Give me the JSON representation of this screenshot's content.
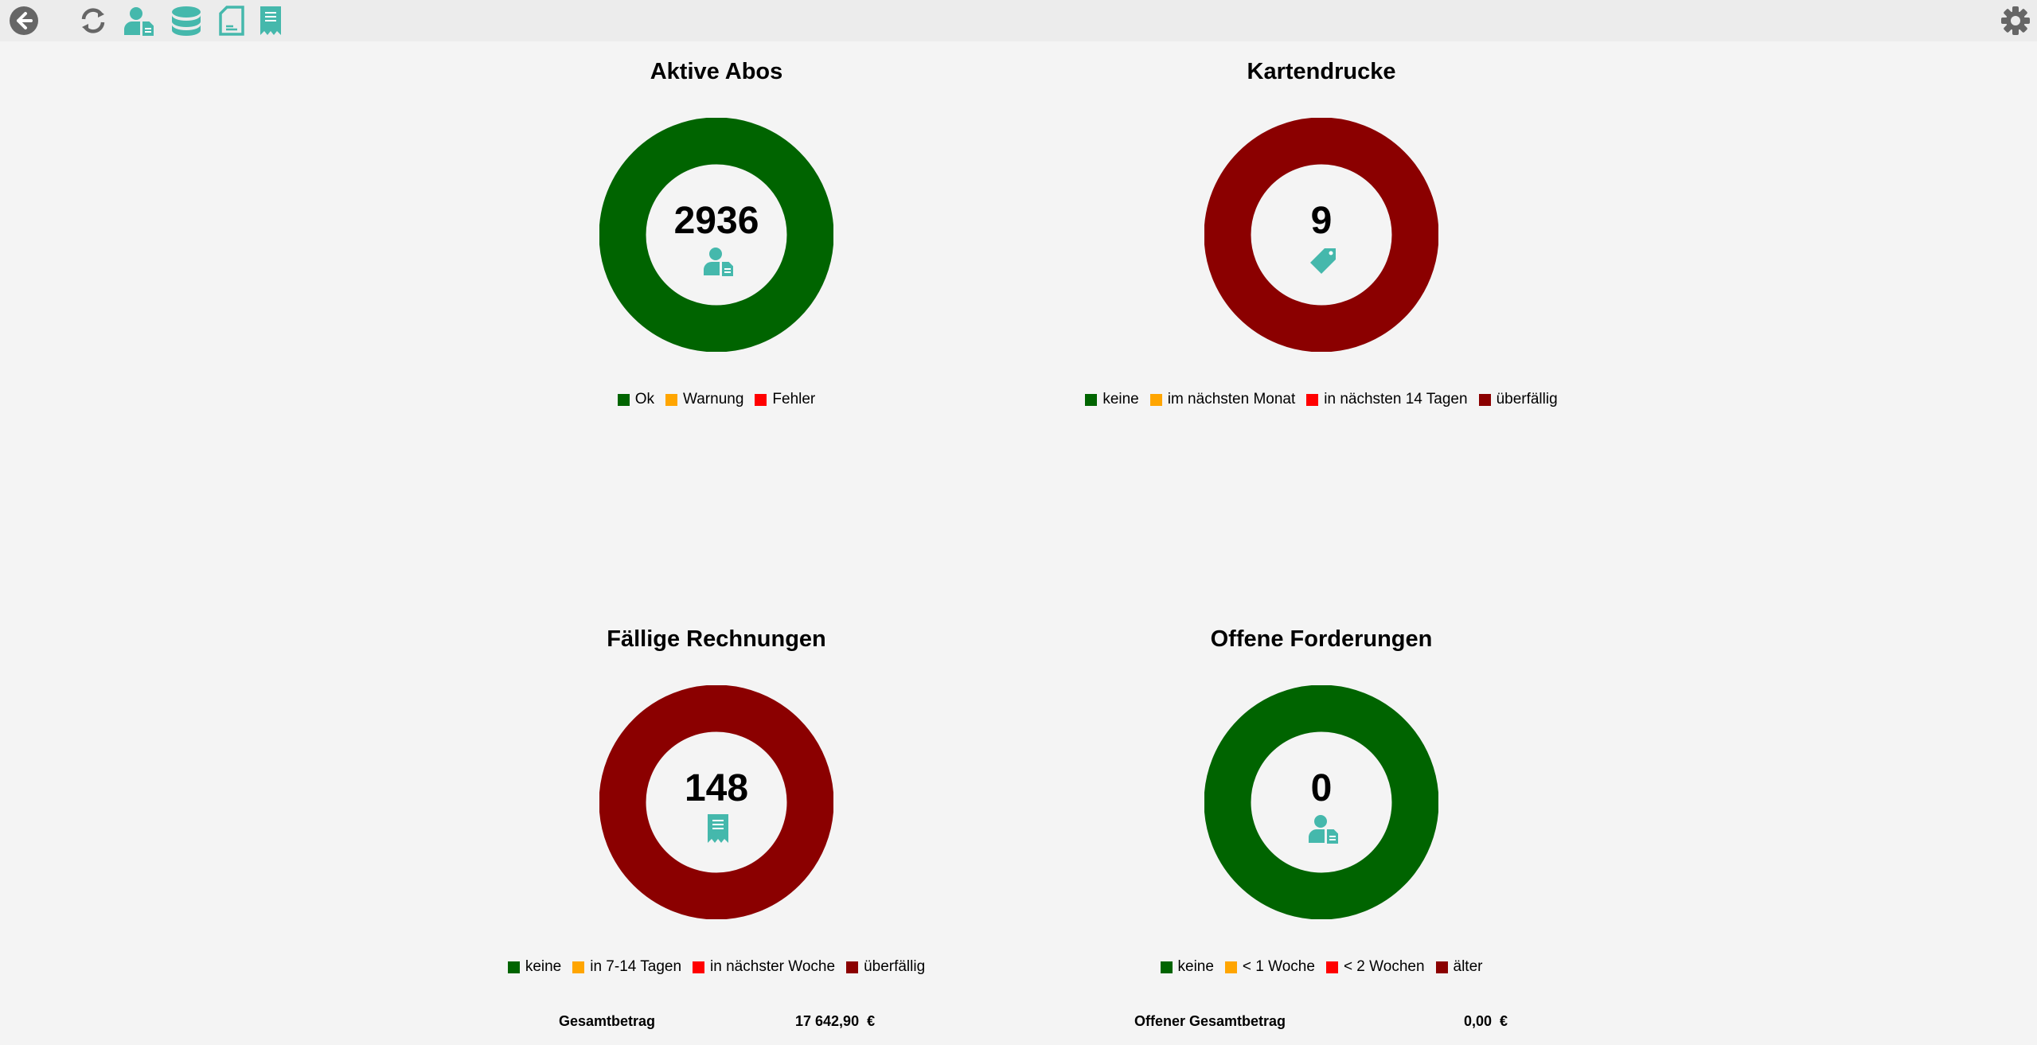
{
  "colors": {
    "ok": "#006400",
    "warn": "#ffa500",
    "err": "#ff0000",
    "late": "#8b0000",
    "accent": "#45b8ac",
    "icon_gray": "#666666"
  },
  "toolbar": {
    "icons": [
      "back-icon",
      "refresh-icon",
      "subscriber-icon",
      "database-icon",
      "document-icon",
      "receipt-icon"
    ],
    "settings": "gear-icon"
  },
  "panels": [
    {
      "title": "Aktive Abos",
      "count": "2936",
      "icon": "subscriber-icon",
      "legend": [
        {
          "label": "Ok",
          "color": "#006400"
        },
        {
          "label": "Warnung",
          "color": "#ffa500"
        },
        {
          "label": "Fehler",
          "color": "#ff0000"
        }
      ]
    },
    {
      "title": "Kartendrucke",
      "count": "9",
      "icon": "tag-icon",
      "legend": [
        {
          "label": "keine",
          "color": "#006400"
        },
        {
          "label": "im nächsten Monat",
          "color": "#ffa500"
        },
        {
          "label": "in nächsten 14 Tagen",
          "color": "#ff0000"
        },
        {
          "label": "überfällig",
          "color": "#8b0000"
        }
      ]
    },
    {
      "title": "Fällige Rechnungen",
      "count": "148",
      "icon": "receipt-icon",
      "legend": [
        {
          "label": "keine",
          "color": "#006400"
        },
        {
          "label": "in 7-14 Tagen",
          "color": "#ffa500"
        },
        {
          "label": "in nächster Woche",
          "color": "#ff0000"
        },
        {
          "label": "überfällig",
          "color": "#8b0000"
        }
      ],
      "total_label": "Gesamtbetrag",
      "total_value": "17 642,90  €"
    },
    {
      "title": "Offene Forderungen",
      "count": "0",
      "icon": "subscriber-icon",
      "legend": [
        {
          "label": "keine",
          "color": "#006400"
        },
        {
          "label": "< 1 Woche",
          "color": "#ffa500"
        },
        {
          "label": "< 2 Wochen",
          "color": "#ff0000"
        },
        {
          "label": "älter",
          "color": "#8b0000"
        }
      ],
      "total_label": "Offener Gesamtbetrag",
      "total_value": "0,00  €"
    }
  ],
  "chart_data": [
    {
      "type": "pie",
      "title": "Aktive Abos",
      "categories": [
        "Ok",
        "Warnung",
        "Fehler"
      ],
      "values": [
        2936,
        0,
        0
      ]
    },
    {
      "type": "pie",
      "title": "Kartendrucke",
      "categories": [
        "keine",
        "im nächsten Monat",
        "in nächsten 14 Tagen",
        "überfällig"
      ],
      "values": [
        0,
        0,
        0,
        9
      ]
    },
    {
      "type": "pie",
      "title": "Fällige Rechnungen",
      "categories": [
        "keine",
        "in 7-14 Tagen",
        "in nächster Woche",
        "überfällig"
      ],
      "values": [
        0,
        0,
        0,
        148
      ]
    },
    {
      "type": "pie",
      "title": "Offene Forderungen",
      "categories": [
        "keine",
        "< 1 Woche",
        "< 2 Wochen",
        "älter"
      ],
      "values": [
        1,
        0,
        0,
        0
      ]
    }
  ]
}
